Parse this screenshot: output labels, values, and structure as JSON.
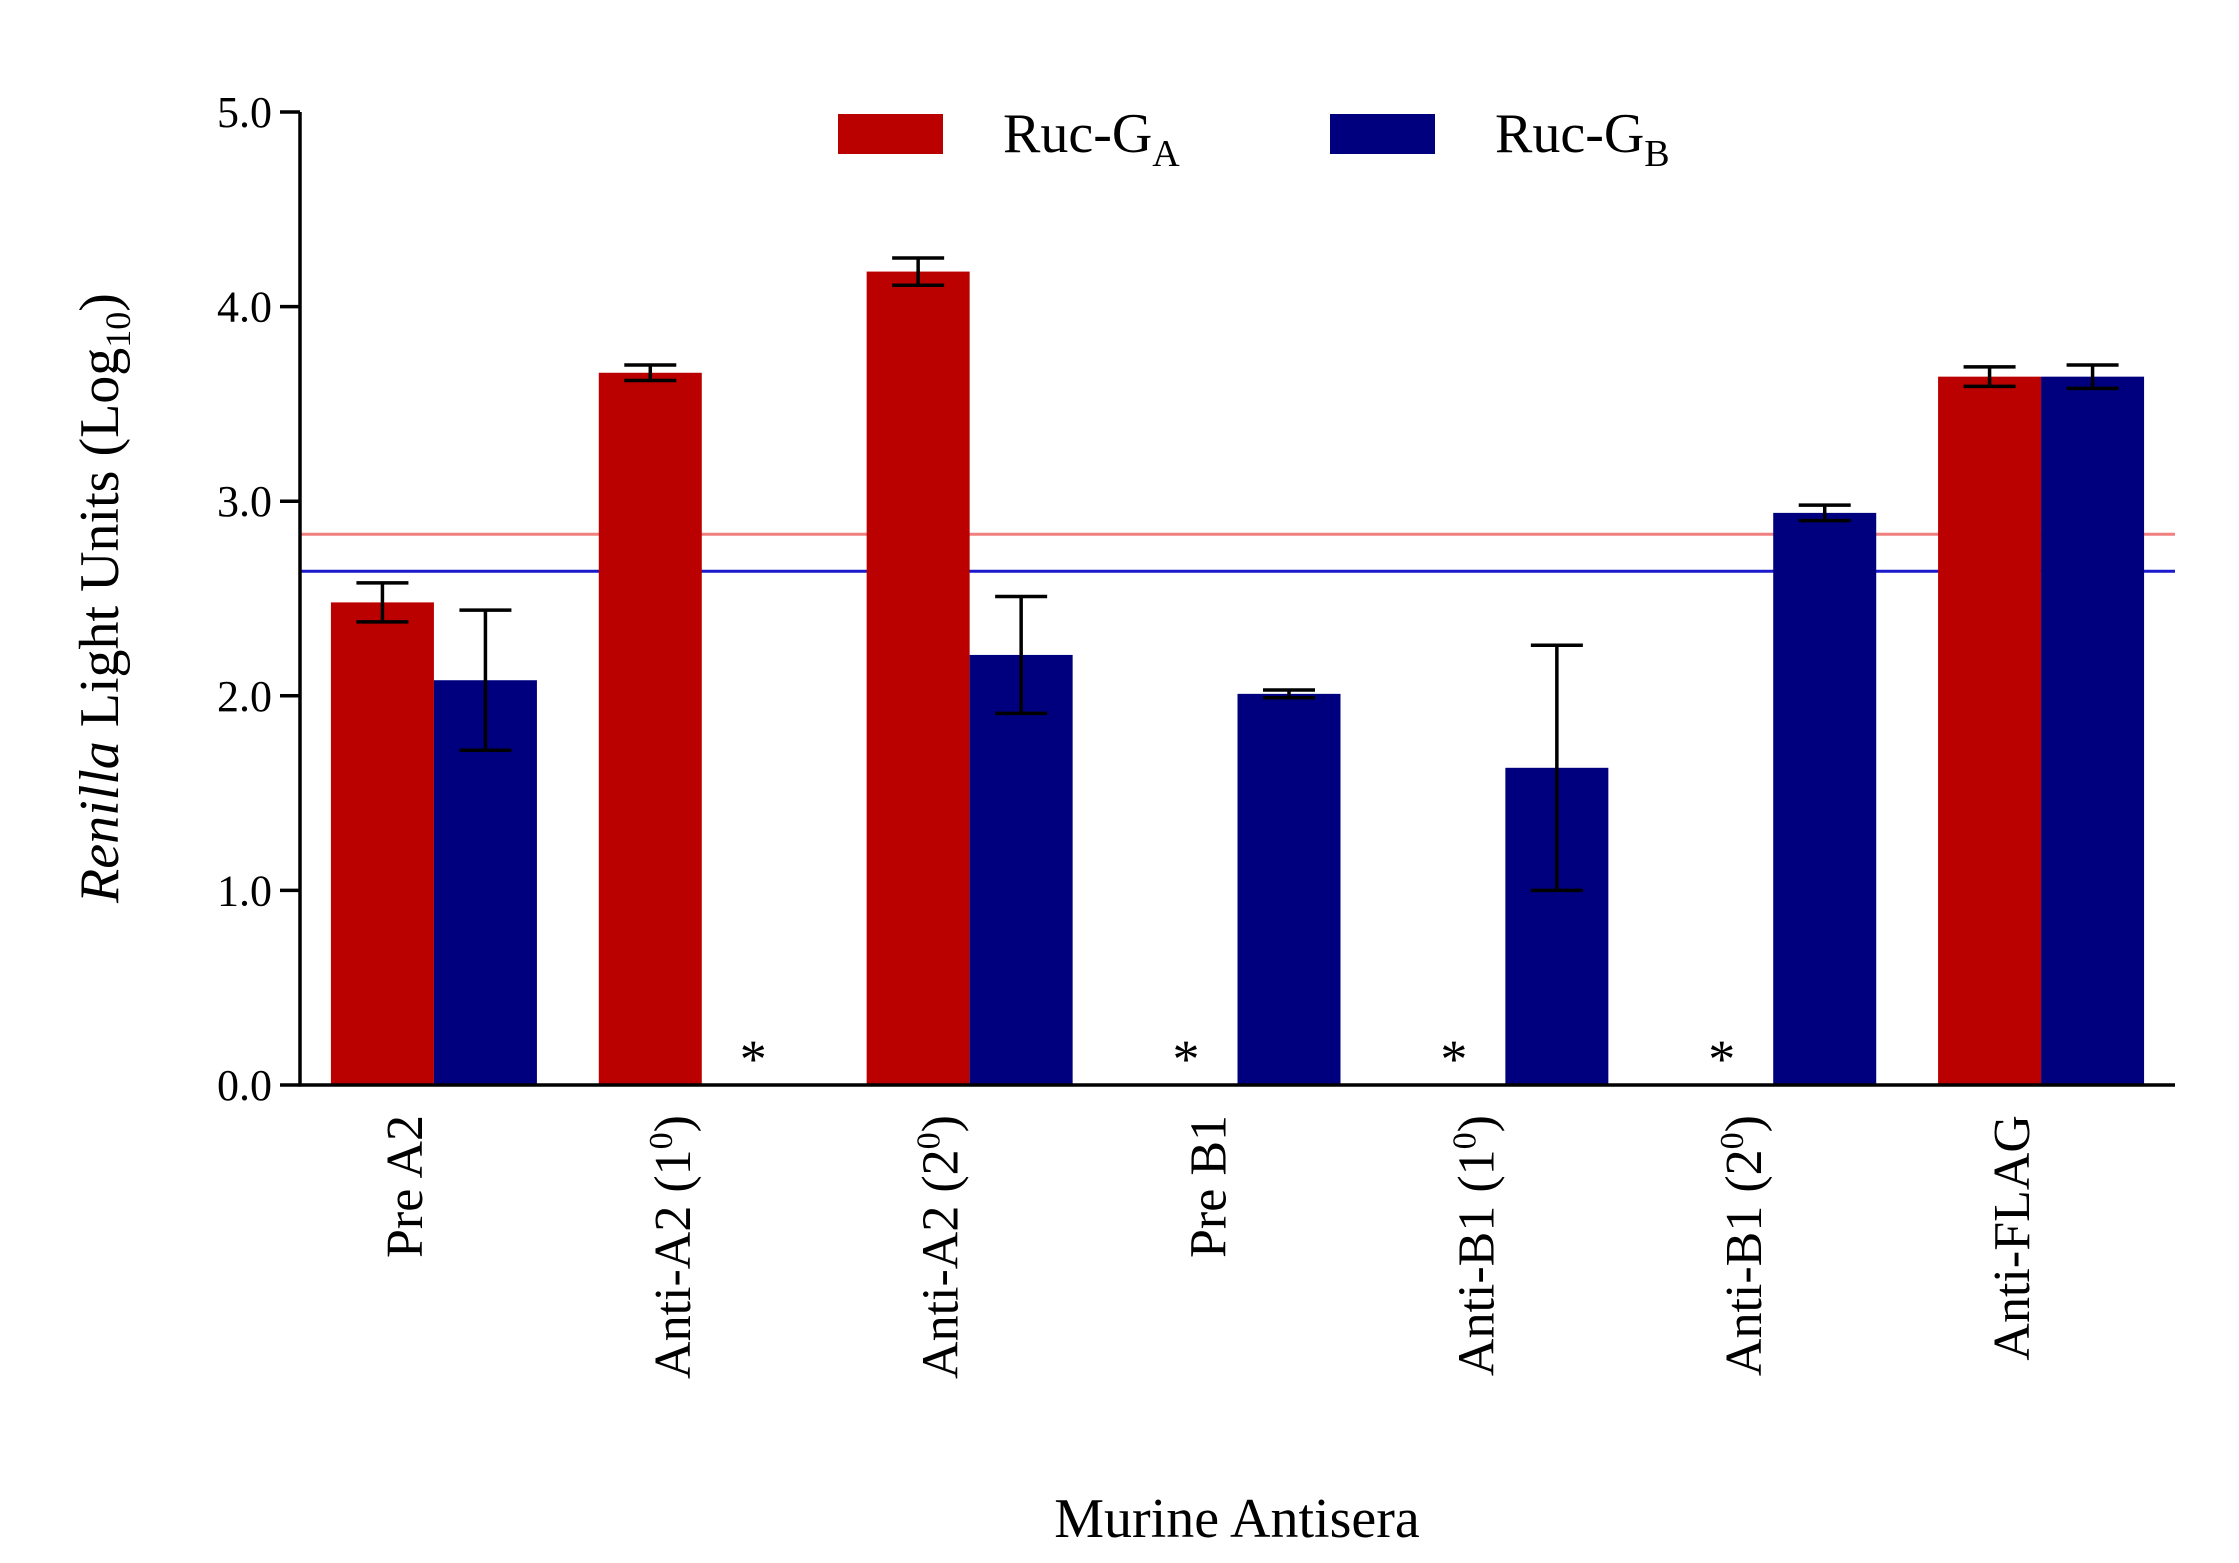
{
  "chart_data": {
    "type": "bar",
    "xlabel": "Murine Antisera",
    "ylabel": {
      "italic": "Renilla",
      "rest": " Light Units (Log",
      "sub": "10",
      "close": ")"
    },
    "ylim": [
      0,
      5
    ],
    "yticks": [
      "0.0",
      "1.0",
      "2.0",
      "3.0",
      "4.0",
      "5.0"
    ],
    "categories": [
      {
        "text": "Pre A2",
        "sup": ""
      },
      {
        "text": "Anti-A2 (1",
        "sup": "0",
        "close": ")"
      },
      {
        "text": "Anti-A2 (2",
        "sup": "0",
        "close": ")"
      },
      {
        "text": "Pre B1",
        "sup": ""
      },
      {
        "text": "Anti-B1 (1",
        "sup": "0",
        "close": ")"
      },
      {
        "text": "Anti-B1 (2",
        "sup": "0",
        "close": ")"
      },
      {
        "text": "Anti-FLAG",
        "sup": ""
      }
    ],
    "series": [
      {
        "name": {
          "main": "Ruc-G",
          "sub": "A"
        },
        "color": "#bb0000",
        "values": [
          2.48,
          3.66,
          4.18,
          null,
          null,
          null,
          3.64
        ],
        "errors": [
          0.1,
          0.04,
          0.07,
          null,
          null,
          null,
          0.05
        ]
      },
      {
        "name": {
          "main": "Ruc-G",
          "sub": "B"
        },
        "color": "#00007f",
        "values": [
          2.08,
          null,
          2.21,
          2.01,
          1.63,
          2.94,
          3.64
        ],
        "errors": [
          0.36,
          null,
          0.3,
          0.02,
          0.63,
          0.04,
          0.06
        ]
      }
    ],
    "missing_marker": "*",
    "cutoff_lines": [
      {
        "series": "Ruc-GA",
        "value": 2.83,
        "color": "#f08080"
      },
      {
        "series": "Ruc-GB",
        "value": 2.64,
        "color": "#1a1acc"
      }
    ],
    "legend_position": "top"
  }
}
